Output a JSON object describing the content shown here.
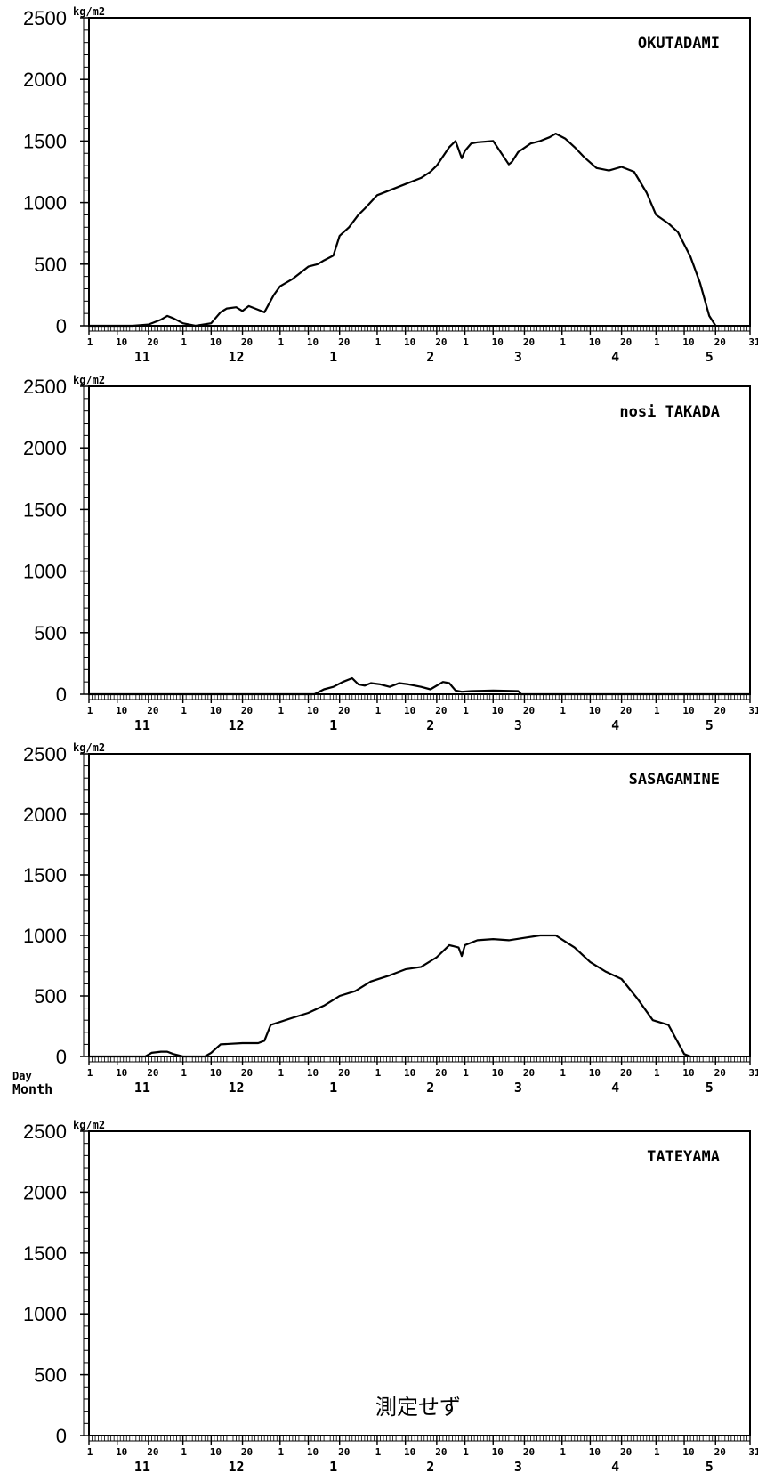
{
  "chart_data": [
    {
      "type": "line",
      "title": "OKUTADAMI",
      "ylabel": "kg/m2",
      "ylim": [
        0,
        2500
      ],
      "yticks": [
        0,
        500,
        1000,
        1500,
        2000,
        2500
      ],
      "x_day_ticks": [
        "1",
        "10",
        "20",
        "1",
        "10",
        "20",
        "1",
        "10",
        "20",
        "1",
        "10",
        "20",
        "1",
        "10",
        "20",
        "1",
        "10",
        "20",
        "1",
        "10",
        "20",
        "31"
      ],
      "x_month_ticks": [
        "11",
        "12",
        "1",
        "2",
        "3",
        "4",
        "5"
      ],
      "x_start": "11-01",
      "x_end": "05-31",
      "series": [
        {
          "x": [
            "11-01",
            "11-15",
            "11-20",
            "11-24",
            "11-26",
            "11-28",
            "12-01",
            "12-05",
            "12-10",
            "12-13",
            "12-15",
            "12-18",
            "12-20",
            "12-22",
            "12-25",
            "12-27",
            "12-30",
            "01-01",
            "01-05",
            "01-08",
            "01-10",
            "01-13",
            "01-15",
            "01-18",
            "01-20",
            "01-23",
            "01-26",
            "01-28",
            "02-01",
            "02-05",
            "02-10",
            "02-15",
            "02-18",
            "02-20",
            "02-24",
            "02-26",
            "02-28",
            "03-01",
            "03-03",
            "03-05",
            "03-10",
            "03-15",
            "03-16",
            "03-18",
            "03-22",
            "03-25",
            "03-28",
            "03-30",
            "04-02",
            "04-05",
            "04-08",
            "04-12",
            "04-16",
            "04-20",
            "04-24",
            "04-28",
            "05-01",
            "05-05",
            "05-08",
            "05-12",
            "05-15",
            "05-18",
            "05-20"
          ],
          "values": [
            0,
            0,
            10,
            50,
            80,
            60,
            20,
            0,
            20,
            110,
            140,
            150,
            120,
            160,
            130,
            110,
            250,
            320,
            380,
            440,
            480,
            500,
            530,
            570,
            730,
            800,
            900,
            950,
            1060,
            1100,
            1150,
            1200,
            1250,
            1300,
            1450,
            1500,
            1360,
            1420,
            1480,
            1490,
            1500,
            1310,
            1330,
            1410,
            1480,
            1500,
            1530,
            1560,
            1520,
            1450,
            1370,
            1280,
            1260,
            1290,
            1250,
            1080,
            900,
            830,
            760,
            560,
            350,
            80,
            0
          ]
        }
      ]
    },
    {
      "type": "line",
      "title": "nosi TAKADA",
      "ylabel": "kg/m2",
      "ylim": [
        0,
        2500
      ],
      "yticks": [
        0,
        500,
        1000,
        1500,
        2000,
        2500
      ],
      "x_day_ticks": [
        "1",
        "10",
        "20",
        "1",
        "10",
        "20",
        "1",
        "10",
        "20",
        "1",
        "10",
        "20",
        "1",
        "10",
        "20",
        "1",
        "10",
        "20",
        "1",
        "10",
        "20",
        "31"
      ],
      "x_month_ticks": [
        "11",
        "12",
        "1",
        "2",
        "3",
        "4",
        "5"
      ],
      "x_start": "11-01",
      "x_end": "05-31",
      "series": [
        {
          "x": [
            "11-01",
            "01-12",
            "01-15",
            "01-18",
            "01-21",
            "01-24",
            "01-26",
            "01-28",
            "01-30",
            "02-02",
            "02-05",
            "02-08",
            "02-11",
            "02-15",
            "02-18",
            "02-22",
            "02-24",
            "02-26",
            "02-28",
            "03-03",
            "03-10",
            "03-18",
            "03-19",
            "03-20",
            "05-31"
          ],
          "values": [
            0,
            0,
            40,
            60,
            100,
            130,
            80,
            70,
            90,
            80,
            60,
            90,
            80,
            60,
            40,
            100,
            90,
            30,
            20,
            25,
            30,
            25,
            0,
            0,
            0
          ]
        }
      ]
    },
    {
      "type": "line",
      "title": "SASAGAMINE",
      "ylabel": "kg/m2",
      "ylim": [
        0,
        2500
      ],
      "yticks": [
        0,
        500,
        1000,
        1500,
        2000,
        2500
      ],
      "xlabel_day": "Day",
      "xlabel_month": "Month",
      "x_day_ticks": [
        "1",
        "10",
        "20",
        "1",
        "10",
        "20",
        "1",
        "10",
        "20",
        "1",
        "10",
        "20",
        "1",
        "10",
        "20",
        "1",
        "10",
        "20",
        "1",
        "10",
        "20",
        "31"
      ],
      "x_month_ticks": [
        "11",
        "12",
        "1",
        "2",
        "3",
        "4",
        "5"
      ],
      "x_start": "11-01",
      "x_end": "05-31",
      "series": [
        {
          "x": [
            "11-01",
            "11-19",
            "11-21",
            "11-24",
            "11-26",
            "11-28",
            "12-01",
            "12-08",
            "12-10",
            "12-13",
            "12-20",
            "12-25",
            "12-27",
            "12-29",
            "01-05",
            "01-10",
            "01-15",
            "01-20",
            "01-25",
            "01-30",
            "02-05",
            "02-10",
            "02-15",
            "02-20",
            "02-24",
            "02-27",
            "02-28",
            "03-01",
            "03-05",
            "03-10",
            "03-15",
            "03-20",
            "03-25",
            "03-30",
            "04-05",
            "04-10",
            "04-15",
            "04-20",
            "04-25",
            "04-30",
            "05-05",
            "05-10",
            "05-12"
          ],
          "values": [
            0,
            0,
            30,
            40,
            40,
            20,
            0,
            0,
            30,
            100,
            110,
            110,
            130,
            260,
            320,
            360,
            420,
            500,
            540,
            620,
            670,
            720,
            740,
            820,
            920,
            900,
            830,
            920,
            960,
            970,
            960,
            980,
            1000,
            1000,
            900,
            780,
            700,
            640,
            480,
            300,
            260,
            20,
            0
          ]
        }
      ]
    },
    {
      "type": "line",
      "title": "TATEYAMA",
      "ylabel": "kg/m2",
      "ylim": [
        0,
        2500
      ],
      "yticks": [
        0,
        500,
        1000,
        1500,
        2000,
        2500
      ],
      "x_day_ticks": [
        "1",
        "10",
        "20",
        "1",
        "10",
        "20",
        "1",
        "10",
        "20",
        "1",
        "10",
        "20",
        "1",
        "10",
        "20",
        "1",
        "10",
        "20",
        "1",
        "10",
        "20",
        "31"
      ],
      "x_month_ticks": [
        "11",
        "12",
        "1",
        "2",
        "3",
        "4",
        "5"
      ],
      "x_start": "11-01",
      "x_end": "05-31",
      "annotation": "測定せず",
      "series": []
    }
  ]
}
